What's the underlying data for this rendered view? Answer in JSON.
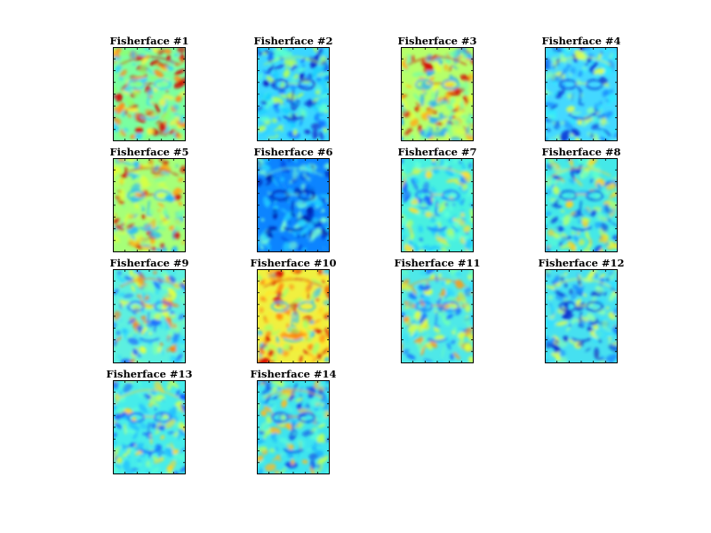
{
  "chart_data": {
    "type": "heatmap",
    "colormap": "jet",
    "layout": "4x4 grid of image panels (14 used)",
    "panels": [
      {
        "title": "Fisherface #1",
        "palette": [
          "#2fd0ff",
          "#8cff6a",
          "#fff13a",
          "#ff8a1a",
          "#d60000"
        ],
        "bg": "#7affa0",
        "dominant": "yellow-green"
      },
      {
        "title": "Fisherface #2",
        "palette": [
          "#0a1fc9",
          "#0a72ff",
          "#1ad0ff",
          "#58ffd0",
          "#b6ff55"
        ],
        "bg": "#3ad6ff",
        "dominant": "cyan-blue"
      },
      {
        "title": "Fisherface #3",
        "palette": [
          "#29a8ff",
          "#6fffaa",
          "#e3ff3a",
          "#ffae14",
          "#d80000"
        ],
        "bg": "#b6ff6a",
        "dominant": "yellow-green"
      },
      {
        "title": "Fisherface #4",
        "palette": [
          "#0a3dd9",
          "#1a90ff",
          "#2ee8ff",
          "#8affb0",
          "#e0ff4c"
        ],
        "bg": "#44d8ff",
        "dominant": "cyan"
      },
      {
        "title": "Fisherface #5",
        "palette": [
          "#22b8ff",
          "#7affa0",
          "#dfff3a",
          "#ffa516",
          "#d41000"
        ],
        "bg": "#a6ff78",
        "dominant": "yellow-green"
      },
      {
        "title": "Fisherface #6",
        "palette": [
          "#001aa8",
          "#0046e0",
          "#0a8cff",
          "#22d2ff",
          "#7affd0"
        ],
        "bg": "#0c84ff",
        "dominant": "blue"
      },
      {
        "title": "Fisherface #7",
        "palette": [
          "#1a64ff",
          "#22c8ff",
          "#5cffd8",
          "#b0ff66",
          "#ffe030"
        ],
        "bg": "#48f0e0",
        "dominant": "cyan-green"
      },
      {
        "title": "Fisherface #8",
        "palette": [
          "#0a4ae0",
          "#22b0ff",
          "#5affd0",
          "#c6ff55",
          "#ffd020"
        ],
        "bg": "#44e8e8",
        "dominant": "cyan"
      },
      {
        "title": "Fisherface #9",
        "palette": [
          "#1e70ff",
          "#2ed8ff",
          "#7affb0",
          "#e8ff3a",
          "#ff7a10"
        ],
        "bg": "#5cf0e0",
        "dominant": "cyan-green"
      },
      {
        "title": "Fisherface #10",
        "palette": [
          "#22c0ff",
          "#a8ff66",
          "#ffe82a",
          "#ff8a10",
          "#d80000"
        ],
        "bg": "#f0f040",
        "dominant": "yellow-orange"
      },
      {
        "title": "Fisherface #11",
        "palette": [
          "#1a74ff",
          "#2ed8ff",
          "#6affb8",
          "#dcff40",
          "#ff9a14"
        ],
        "bg": "#4ee8e8",
        "dominant": "cyan-green"
      },
      {
        "title": "Fisherface #12",
        "palette": [
          "#0a34d0",
          "#1a8cff",
          "#30e0ff",
          "#8affb0",
          "#e6ff48"
        ],
        "bg": "#46e0f0",
        "dominant": "cyan"
      },
      {
        "title": "Fisherface #13",
        "palette": [
          "#1256ff",
          "#24c0ff",
          "#5cffd0",
          "#c8ff55",
          "#ffd428"
        ],
        "bg": "#46ecea",
        "dominant": "cyan-green"
      },
      {
        "title": "Fisherface #14",
        "palette": [
          "#0c44e6",
          "#1cb0ff",
          "#52f8dc",
          "#b6ff5c",
          "#ffb820"
        ],
        "bg": "#3ee4ee",
        "dominant": "cyan"
      }
    ]
  }
}
